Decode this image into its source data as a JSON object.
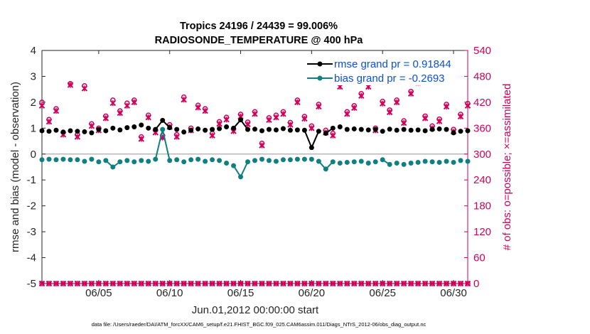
{
  "chart_data": {
    "type": "line",
    "title": [
      "Tropics 24196 / 24439 = 99.006%",
      "RADIOSONDE_TEMPERATURE @ 400 hPa"
    ],
    "xlabel": "Jun.01,2012 00:00:00 start",
    "ylabel_left": "rmse and bias (model - observation)",
    "ylabel_right": "# of obs: o=possible; ×=assimilated",
    "ylim_left": [
      -5,
      4
    ],
    "ylim_right": [
      0,
      540
    ],
    "yticks_left": [
      "4",
      "3",
      "2",
      "1",
      "0",
      "-1",
      "-2",
      "-3",
      "-4",
      "-5"
    ],
    "yticks_right": [
      "540",
      "480",
      "420",
      "360",
      "300",
      "240",
      "180",
      "120",
      "60",
      "0"
    ],
    "xticks": [
      "06/05",
      "06/10",
      "06/15",
      "06/20",
      "06/25",
      "06/30"
    ],
    "xtick_days": [
      5,
      10,
      15,
      20,
      25,
      30
    ],
    "xlim_days": [
      1,
      31
    ],
    "footnote": "data file: /Users/raeder/DAI/ATM_forcXX/CAM6_setup/f.e21.FHIST_BGC.f09_025.CAM6assim.011/Diags_NTrS_2012-06/obs_diag_output.nc",
    "legend": [
      {
        "label": "rmse grand pr = 0.91844",
        "color": "#000000"
      },
      {
        "label": "bias grand pr = -0.2693",
        "color": "#0f7f7f"
      }
    ],
    "colors": {
      "rmse": "#000000",
      "bias": "#0f7f7f",
      "counts": "#d1005a",
      "zero": "#aaaaaa"
    },
    "x_start_day": 1.0,
    "x_step_day": 0.5,
    "series": [
      {
        "name": "rmse",
        "axis": "left",
        "values": [
          0.9,
          0.88,
          0.92,
          0.85,
          0.9,
          0.88,
          0.86,
          0.82,
          0.95,
          0.9,
          1.0,
          0.93,
          1.02,
          1.05,
          1.12,
          1.0,
          0.95,
          1.3,
          1.02,
          0.95,
          0.85,
          0.92,
          0.97,
          0.92,
          0.95,
          0.98,
          1.05,
          1.0,
          1.32,
          0.95,
          0.96,
          0.9,
          0.95,
          0.93,
          0.98,
          0.92,
          0.93,
          0.92,
          0.25,
          0.88,
          0.8,
          1.0,
          1.05,
          0.95,
          0.97,
          0.95,
          0.93,
          0.95,
          0.88,
          0.96,
          0.92,
          0.95,
          0.92,
          0.93,
          0.9,
          0.95,
          0.97,
          0.95,
          0.82,
          0.88,
          0.9
        ]
      },
      {
        "name": "bias",
        "axis": "left",
        "values": [
          -0.22,
          -0.2,
          -0.22,
          -0.2,
          -0.22,
          -0.22,
          -0.28,
          -0.2,
          -0.3,
          -0.25,
          -0.5,
          -0.3,
          -0.25,
          -0.3,
          -0.25,
          -0.28,
          -0.2,
          0.95,
          -0.25,
          -0.22,
          -0.3,
          -0.22,
          -0.2,
          -0.28,
          -0.22,
          -0.25,
          -0.35,
          -0.45,
          -0.88,
          -0.3,
          -0.25,
          -0.2,
          -0.25,
          -0.28,
          -0.22,
          -0.22,
          -0.2,
          -0.2,
          -0.2,
          -0.28,
          -0.58,
          -0.3,
          -0.35,
          -0.32,
          -0.3,
          -0.28,
          -0.35,
          -0.3,
          -0.22,
          -0.4,
          -0.35,
          -0.4,
          -0.35,
          -0.32,
          -0.28,
          -0.3,
          -0.32,
          -0.28,
          -0.32,
          -0.25,
          -0.28
        ]
      },
      {
        "name": "obs_possible",
        "axis": "right",
        "values": [
          420,
          380,
          405,
          350,
          463,
          345,
          458,
          370,
          360,
          388,
          425,
          400,
          418,
          425,
          340,
          390,
          355,
          343,
          368,
          345,
          432,
          360,
          413,
          405,
          348,
          375,
          385,
          358,
          392,
          374,
          398,
          325,
          384,
          390,
          398,
          373,
          425,
          387,
          365,
          415,
          355,
          348,
          462,
          398,
          412,
          440,
          462,
          360,
          422,
          402,
          425,
          377,
          445,
          470,
          388,
          365,
          381,
          415,
          357,
          392,
          417
        ]
      },
      {
        "name": "obs_assimilated",
        "axis": "right",
        "values": [
          412,
          375,
          400,
          345,
          460,
          340,
          452,
          365,
          355,
          383,
          418,
          395,
          412,
          420,
          335,
          385,
          350,
          338,
          363,
          340,
          426,
          355,
          408,
          400,
          343,
          370,
          380,
          353,
          387,
          369,
          393,
          320,
          379,
          385,
          393,
          368,
          420,
          382,
          360,
          410,
          350,
          343,
          456,
          393,
          407,
          435,
          456,
          355,
          417,
          397,
          420,
          372,
          440,
          465,
          383,
          360,
          376,
          410,
          352,
          387,
          412
        ]
      }
    ]
  }
}
